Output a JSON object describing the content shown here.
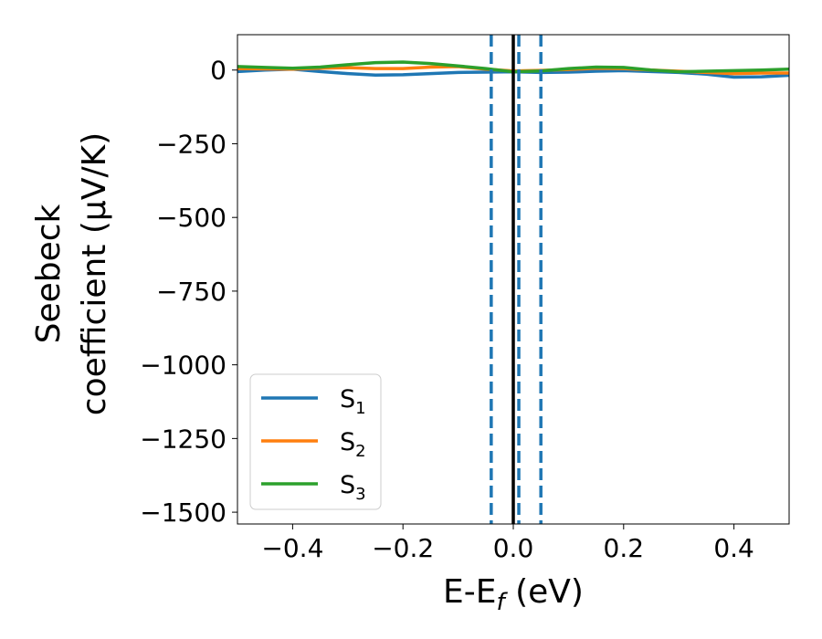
{
  "chart_data": {
    "type": "line",
    "title": "",
    "xlabel": {
      "main": "E-E",
      "sub": "f",
      "rest": " (eV)"
    },
    "ylabel": {
      "line1": "Seebeck",
      "line2": "coefficient  (μV/K)"
    },
    "xlim": [
      -0.5,
      0.5
    ],
    "ylim": [
      -1540,
      120
    ],
    "xticks": [
      -0.4,
      -0.2,
      0.0,
      0.2,
      0.4
    ],
    "xtick_labels": [
      "−0.4",
      "−0.2",
      "0.0",
      "0.2",
      "0.4"
    ],
    "yticks": [
      0,
      -250,
      -500,
      -750,
      -1000,
      -1250,
      -1500
    ],
    "ytick_labels": [
      "0",
      "−250",
      "−500",
      "−750",
      "−1000",
      "−1250",
      "−1500"
    ],
    "grid": false,
    "legend_position": "lower-left",
    "series": [
      {
        "name": "S",
        "sub": "1",
        "color": "#1f77b4",
        "x": [
          -0.5,
          -0.45,
          -0.4,
          -0.35,
          -0.3,
          -0.25,
          -0.2,
          -0.15,
          -0.1,
          -0.05,
          0.0,
          0.05,
          0.1,
          0.15,
          0.2,
          0.25,
          0.3,
          0.35,
          0.4,
          0.45,
          0.5
        ],
        "y": [
          -5,
          0,
          3,
          -5,
          -12,
          -17,
          -16,
          -12,
          -8,
          -7,
          -6,
          -8,
          -7,
          -4,
          -2,
          -5,
          -8,
          -14,
          -24,
          -23,
          -18
        ]
      },
      {
        "name": "S",
        "sub": "2",
        "color": "#ff7f0e",
        "x": [
          -0.5,
          -0.45,
          -0.4,
          -0.35,
          -0.3,
          -0.25,
          -0.2,
          -0.15,
          -0.1,
          -0.05,
          0.0,
          0.05,
          0.1,
          0.15,
          0.2,
          0.25,
          0.3,
          0.35,
          0.4,
          0.45,
          0.5
        ],
        "y": [
          5,
          4,
          3,
          6,
          8,
          5,
          5,
          10,
          12,
          3,
          -3,
          -1,
          2,
          6,
          5,
          0,
          -4,
          -8,
          -12,
          -10,
          -10
        ]
      },
      {
        "name": "S",
        "sub": "3",
        "color": "#2ca02c",
        "x": [
          -0.5,
          -0.45,
          -0.4,
          -0.35,
          -0.3,
          -0.25,
          -0.2,
          -0.15,
          -0.1,
          -0.05,
          0.0,
          0.05,
          0.1,
          0.15,
          0.2,
          0.25,
          0.3,
          0.35,
          0.4,
          0.45,
          0.5
        ],
        "y": [
          12,
          9,
          6,
          10,
          18,
          25,
          27,
          22,
          14,
          5,
          -6,
          -3,
          5,
          10,
          9,
          0,
          -6,
          -4,
          -2,
          0,
          3
        ]
      }
    ],
    "vlines": [
      {
        "x": 0.0,
        "style": "solid",
        "color": "#000000"
      },
      {
        "x": -0.04,
        "style": "dashed",
        "color": "#1f77b4"
      },
      {
        "x": 0.01,
        "style": "dashed",
        "color": "#1f77b4"
      },
      {
        "x": 0.05,
        "style": "dashed",
        "color": "#1f77b4"
      }
    ]
  }
}
